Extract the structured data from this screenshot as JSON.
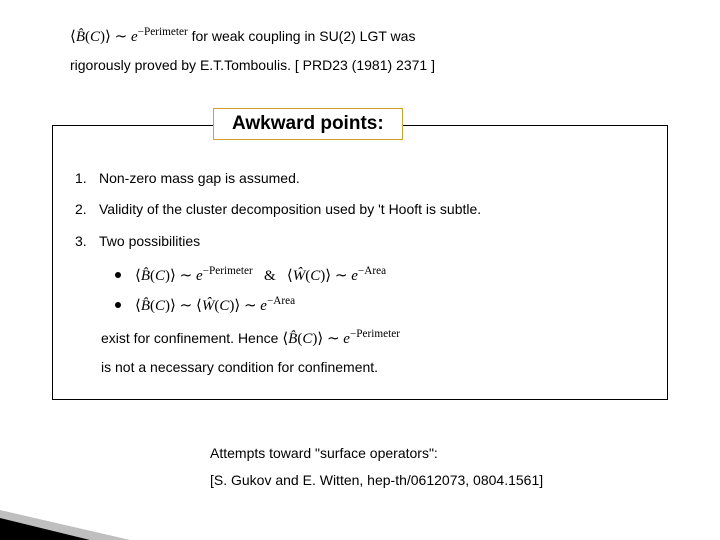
{
  "top": {
    "formula_html": "⟨<i>B̂</i>(<i>C</i>)⟩ ∼ <i>e</i><sup class='exp'>−Perimeter</sup>",
    "line1_tail": " for weak coupling in SU(2) LGT was",
    "line2": "rigorously proved by E.T.Tomboulis. [ PRD23 (1981) 2371 ]"
  },
  "box": {
    "heading": "Awkward points:",
    "items": [
      {
        "n": "1.",
        "text": "Non-zero mass gap is assumed."
      },
      {
        "n": "2.",
        "text": "Validity of the cluster decomposition used by 't Hooft is subtle."
      },
      {
        "n": "3.",
        "text": "Two possibilities"
      }
    ],
    "bullets": [
      "⟨<i>B̂</i>(<i>C</i>)⟩ ∼ <i>e</i><sup class='exp'>−Perimeter</sup>&nbsp;&nbsp;&nbsp;&amp;&nbsp;&nbsp;&nbsp;⟨<i>Ŵ</i>(<i>C</i>)⟩ ∼ <i>e</i><sup class='exp'>−Area</sup>",
      "⟨<i>B̂</i>(<i>C</i>)⟩ ∼ ⟨<i>Ŵ</i>(<i>C</i>)⟩ ∼ <i>e</i><sup class='exp'>−Area</sup>"
    ],
    "closing_line1_pre": "exist for confinement. Hence  ",
    "closing_line1_formula": "⟨<i>B̂</i>(<i>C</i>)⟩ ∼ <i>e</i><sup class='exp'>−Perimeter</sup>",
    "closing_line2": "is not a necessary condition for confinement."
  },
  "bottom": {
    "line1": "Attempts toward \"surface operators\":",
    "line2": "[S. Gukov and E. Witten, hep-th/0612073, 0804.1561]"
  },
  "styling": {
    "page_bg": "#ffffff",
    "text_color": "#000000",
    "heading_border": "#d4a030",
    "box_border": "#000000",
    "font_body": "Verdana",
    "font_math": "Times New Roman",
    "base_fontsize": 14,
    "heading_fontsize": 19
  }
}
